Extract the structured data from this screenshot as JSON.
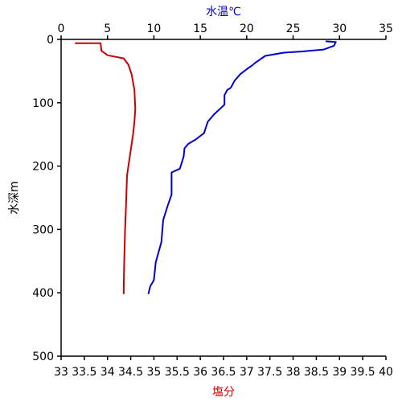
{
  "chart_data": {
    "type": "line",
    "title": "",
    "y_axis": {
      "label": "水深m",
      "range": [
        0,
        500
      ],
      "inverted": true,
      "ticks": [
        0,
        100,
        200,
        300,
        400,
        500
      ]
    },
    "x_axis_top": {
      "label": "水温℃",
      "label_color": "#0000cc",
      "range": [
        0,
        35
      ],
      "ticks": [
        0,
        5,
        10,
        15,
        20,
        25,
        30,
        35
      ]
    },
    "x_axis_bottom": {
      "label": "塩分",
      "label_color": "#cc0000",
      "range": [
        33,
        40
      ],
      "ticks": [
        33,
        33.5,
        34,
        34.5,
        35,
        35.5,
        36,
        36.5,
        37,
        37.5,
        38,
        38.5,
        39,
        39.5,
        40
      ]
    },
    "grid": false,
    "series": [
      {
        "color": "#0000cc",
        "axis": "top",
        "points": [
          {
            "x": 28.5,
            "y": 3
          },
          {
            "x": 29.6,
            "y": 4
          },
          {
            "x": 29.4,
            "y": 10
          },
          {
            "x": 28.3,
            "y": 16
          },
          {
            "x": 26.0,
            "y": 19
          },
          {
            "x": 24.0,
            "y": 21
          },
          {
            "x": 22.0,
            "y": 26
          },
          {
            "x": 21.0,
            "y": 36
          },
          {
            "x": 20.5,
            "y": 42
          },
          {
            "x": 20.0,
            "y": 47
          },
          {
            "x": 19.3,
            "y": 55
          },
          {
            "x": 18.7,
            "y": 65
          },
          {
            "x": 18.3,
            "y": 76
          },
          {
            "x": 17.9,
            "y": 80
          },
          {
            "x": 17.6,
            "y": 88
          },
          {
            "x": 17.6,
            "y": 103
          },
          {
            "x": 16.5,
            "y": 118
          },
          {
            "x": 15.8,
            "y": 130
          },
          {
            "x": 15.4,
            "y": 148
          },
          {
            "x": 14.5,
            "y": 158
          },
          {
            "x": 13.7,
            "y": 165
          },
          {
            "x": 13.3,
            "y": 172
          },
          {
            "x": 13.2,
            "y": 185
          },
          {
            "x": 12.8,
            "y": 204
          },
          {
            "x": 11.9,
            "y": 210
          },
          {
            "x": 11.9,
            "y": 245
          },
          {
            "x": 11.5,
            "y": 262
          },
          {
            "x": 11.0,
            "y": 285
          },
          {
            "x": 10.8,
            "y": 320
          },
          {
            "x": 10.2,
            "y": 352
          },
          {
            "x": 10.0,
            "y": 380
          },
          {
            "x": 9.6,
            "y": 390
          },
          {
            "x": 9.4,
            "y": 402
          }
        ]
      },
      {
        "color": "#cc0000",
        "axis": "bottom",
        "points": [
          {
            "x": 33.3,
            "y": 6
          },
          {
            "x": 33.85,
            "y": 6
          },
          {
            "x": 33.87,
            "y": 18
          },
          {
            "x": 34.0,
            "y": 25
          },
          {
            "x": 34.35,
            "y": 30
          },
          {
            "x": 34.45,
            "y": 40
          },
          {
            "x": 34.52,
            "y": 55
          },
          {
            "x": 34.58,
            "y": 80
          },
          {
            "x": 34.6,
            "y": 110
          },
          {
            "x": 34.58,
            "y": 130
          },
          {
            "x": 34.55,
            "y": 150
          },
          {
            "x": 34.5,
            "y": 175
          },
          {
            "x": 34.45,
            "y": 200
          },
          {
            "x": 34.42,
            "y": 215
          },
          {
            "x": 34.4,
            "y": 260
          },
          {
            "x": 34.38,
            "y": 300
          },
          {
            "x": 34.36,
            "y": 350
          },
          {
            "x": 34.35,
            "y": 390
          },
          {
            "x": 34.35,
            "y": 402
          }
        ]
      }
    ]
  }
}
